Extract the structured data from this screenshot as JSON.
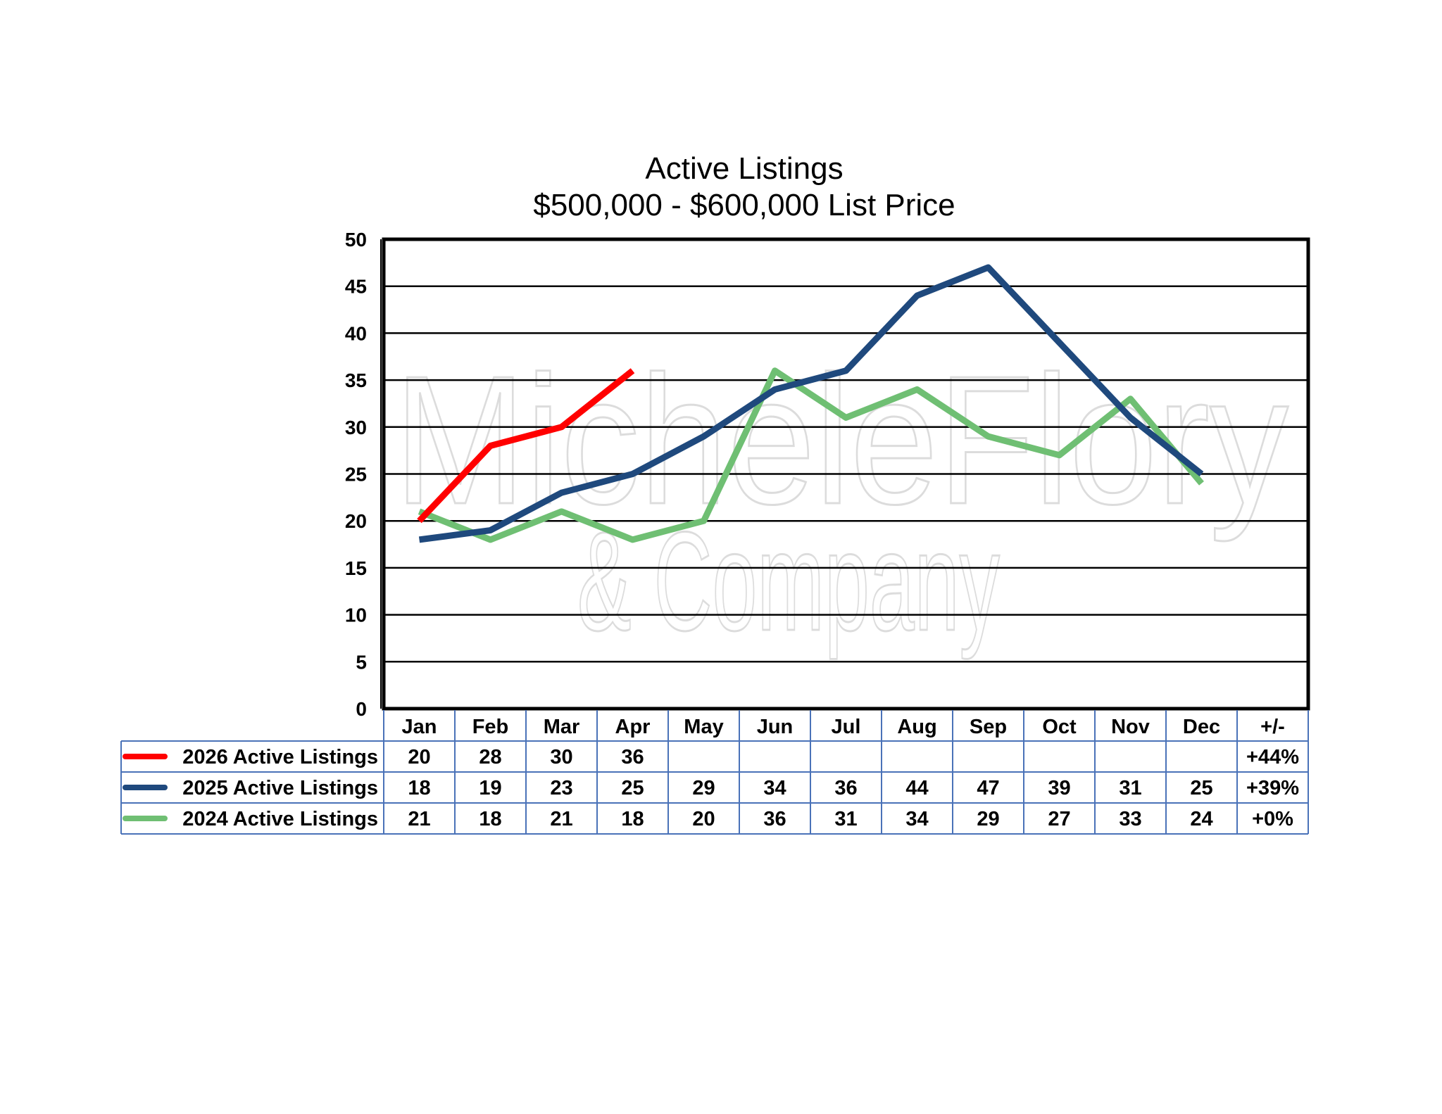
{
  "chart_data": {
    "type": "line",
    "title": "Active Listings",
    "subtitle": "$500,000 - $600,000 List Price",
    "categories": [
      "Jan",
      "Feb",
      "Mar",
      "Apr",
      "May",
      "Jun",
      "Jul",
      "Aug",
      "Sep",
      "Oct",
      "Nov",
      "Dec"
    ],
    "change_header": "+/-",
    "ylim": [
      0,
      50
    ],
    "yticks": [
      "0",
      "5",
      "10",
      "15",
      "20",
      "25",
      "30",
      "35",
      "40",
      "45",
      "50"
    ],
    "grid": true,
    "legend_placement": "data-table-left",
    "series": [
      {
        "name": "2026 Active Listings",
        "color": "#ff0000",
        "values": [
          20,
          28,
          30,
          36,
          null,
          null,
          null,
          null,
          null,
          null,
          null,
          null
        ],
        "change": "+44%"
      },
      {
        "name": "2025 Active Listings",
        "color": "#1f497d",
        "values": [
          18,
          19,
          23,
          25,
          29,
          34,
          36,
          44,
          47,
          39,
          31,
          25
        ],
        "change": "+39%"
      },
      {
        "name": "2024 Active Listings",
        "color": "#6fbf73",
        "values": [
          21,
          18,
          21,
          18,
          20,
          36,
          31,
          34,
          29,
          27,
          33,
          24
        ],
        "change": "+0%"
      }
    ]
  },
  "watermark": {
    "line1": "MicheleFlory",
    "line2": "& Company"
  }
}
